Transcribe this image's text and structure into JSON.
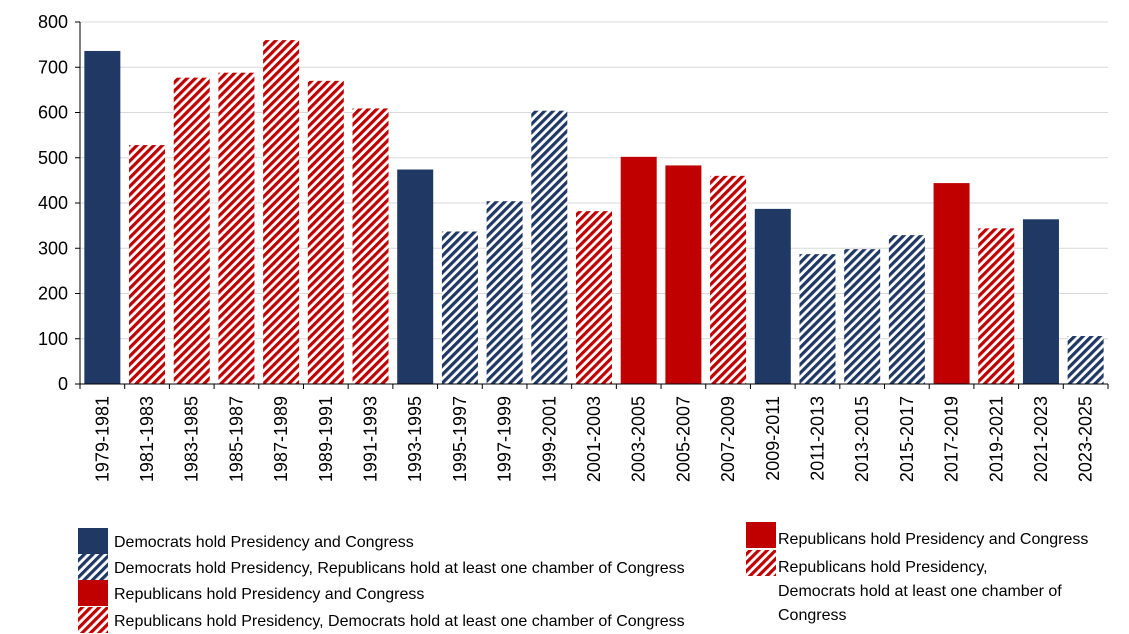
{
  "chart_data": {
    "type": "bar",
    "ylim": [
      0,
      800
    ],
    "yticks": [
      0,
      100,
      200,
      300,
      400,
      500,
      600,
      700,
      800
    ],
    "grid": true,
    "categories": [
      "1979-1981",
      "1981-1983",
      "1983-1985",
      "1985-1987",
      "1987-1989",
      "1989-1991",
      "1991-1993",
      "1993-1995",
      "1995-1997",
      "1997-1999",
      "1999-2001",
      "2001-2003",
      "2003-2005",
      "2005-2007",
      "2007-2009",
      "2009-2011",
      "2011-2013",
      "2013-2015",
      "2015-2017",
      "2017-2019",
      "2019-2021",
      "2021-2023",
      "2023-2025"
    ],
    "values": [
      736,
      528,
      677,
      688,
      760,
      670,
      609,
      474,
      337,
      404,
      604,
      382,
      502,
      483,
      460,
      387,
      287,
      298,
      329,
      444,
      344,
      364,
      106
    ],
    "bar_group": [
      "dem-solid",
      "rep-hatch",
      "rep-hatch",
      "rep-hatch",
      "rep-hatch",
      "rep-hatch",
      "rep-hatch",
      "dem-solid",
      "dem-hatch",
      "dem-hatch",
      "dem-hatch",
      "rep-hatch",
      "rep-solid",
      "rep-solid",
      "rep-hatch",
      "dem-solid",
      "dem-hatch",
      "dem-hatch",
      "dem-hatch",
      "rep-solid",
      "rep-hatch",
      "dem-solid",
      "dem-hatch"
    ],
    "colors": {
      "dem": "#1f3864",
      "rep": "#c00000",
      "grid": "#d9d9d9",
      "axis": "#000000"
    },
    "legend_left": [
      {
        "group": "dem-solid",
        "label": "Democrats hold Presidency and Congress"
      },
      {
        "group": "dem-hatch",
        "label": "Democrats hold Presidency, Republicans hold at least one chamber of Congress"
      },
      {
        "group": "rep-solid",
        "label": "Republicans hold Presidency and Congress"
      },
      {
        "group": "rep-hatch",
        "label": "Republicans hold Presidency, Democrats hold at least one chamber of Congress"
      }
    ],
    "legend_right": [
      {
        "group": "rep-solid",
        "lines": [
          "Republicans hold Presidency and Congress"
        ]
      },
      {
        "group": "rep-hatch",
        "lines": [
          "Republicans hold Presidency,",
          "Democrats hold at least one chamber of",
          "Congress"
        ]
      }
    ]
  }
}
